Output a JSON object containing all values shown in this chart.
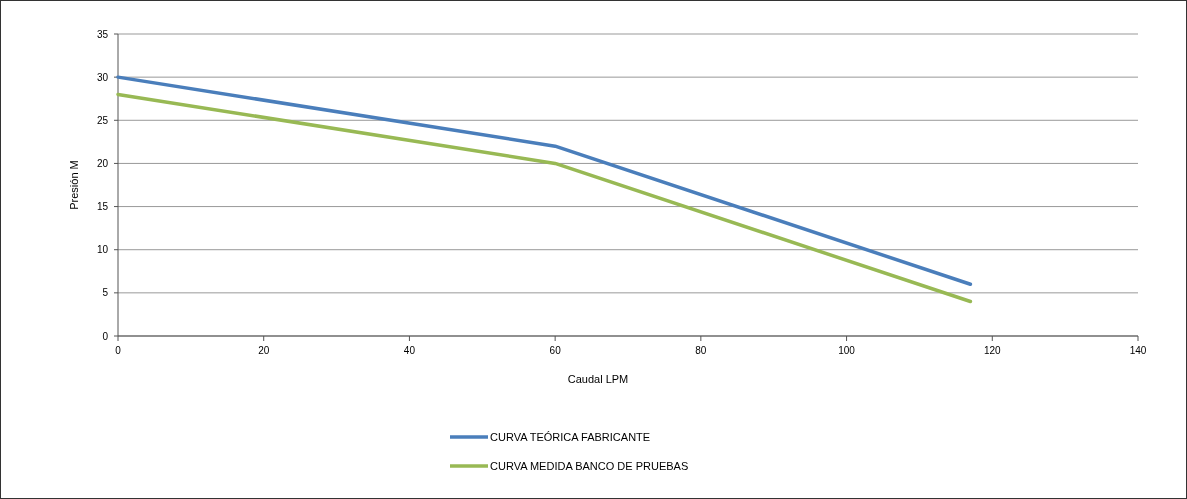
{
  "chart_data": {
    "type": "line",
    "xlabel": "Caudal LPM",
    "ylabel": "Presión M",
    "xlim": [
      0,
      140
    ],
    "xticks": [
      0,
      20,
      40,
      60,
      80,
      100,
      120,
      140
    ],
    "ylim": [
      0,
      35
    ],
    "yticks": [
      0,
      5,
      10,
      15,
      20,
      25,
      30,
      35
    ],
    "grid": "y",
    "legend": "bottom",
    "marker": "none",
    "line_style": "solid",
    "series": [
      {
        "name": "CURVA TEÓRICA FABRICANTE",
        "color": "#4a7ebb",
        "x": [
          0,
          60,
          117
        ],
        "values": [
          30,
          22,
          6
        ]
      },
      {
        "name": "CURVA MEDIDA BANCO DE PRUEBAS",
        "color": "#98b954",
        "x": [
          0,
          60,
          117
        ],
        "values": [
          28,
          20,
          4
        ]
      }
    ]
  }
}
